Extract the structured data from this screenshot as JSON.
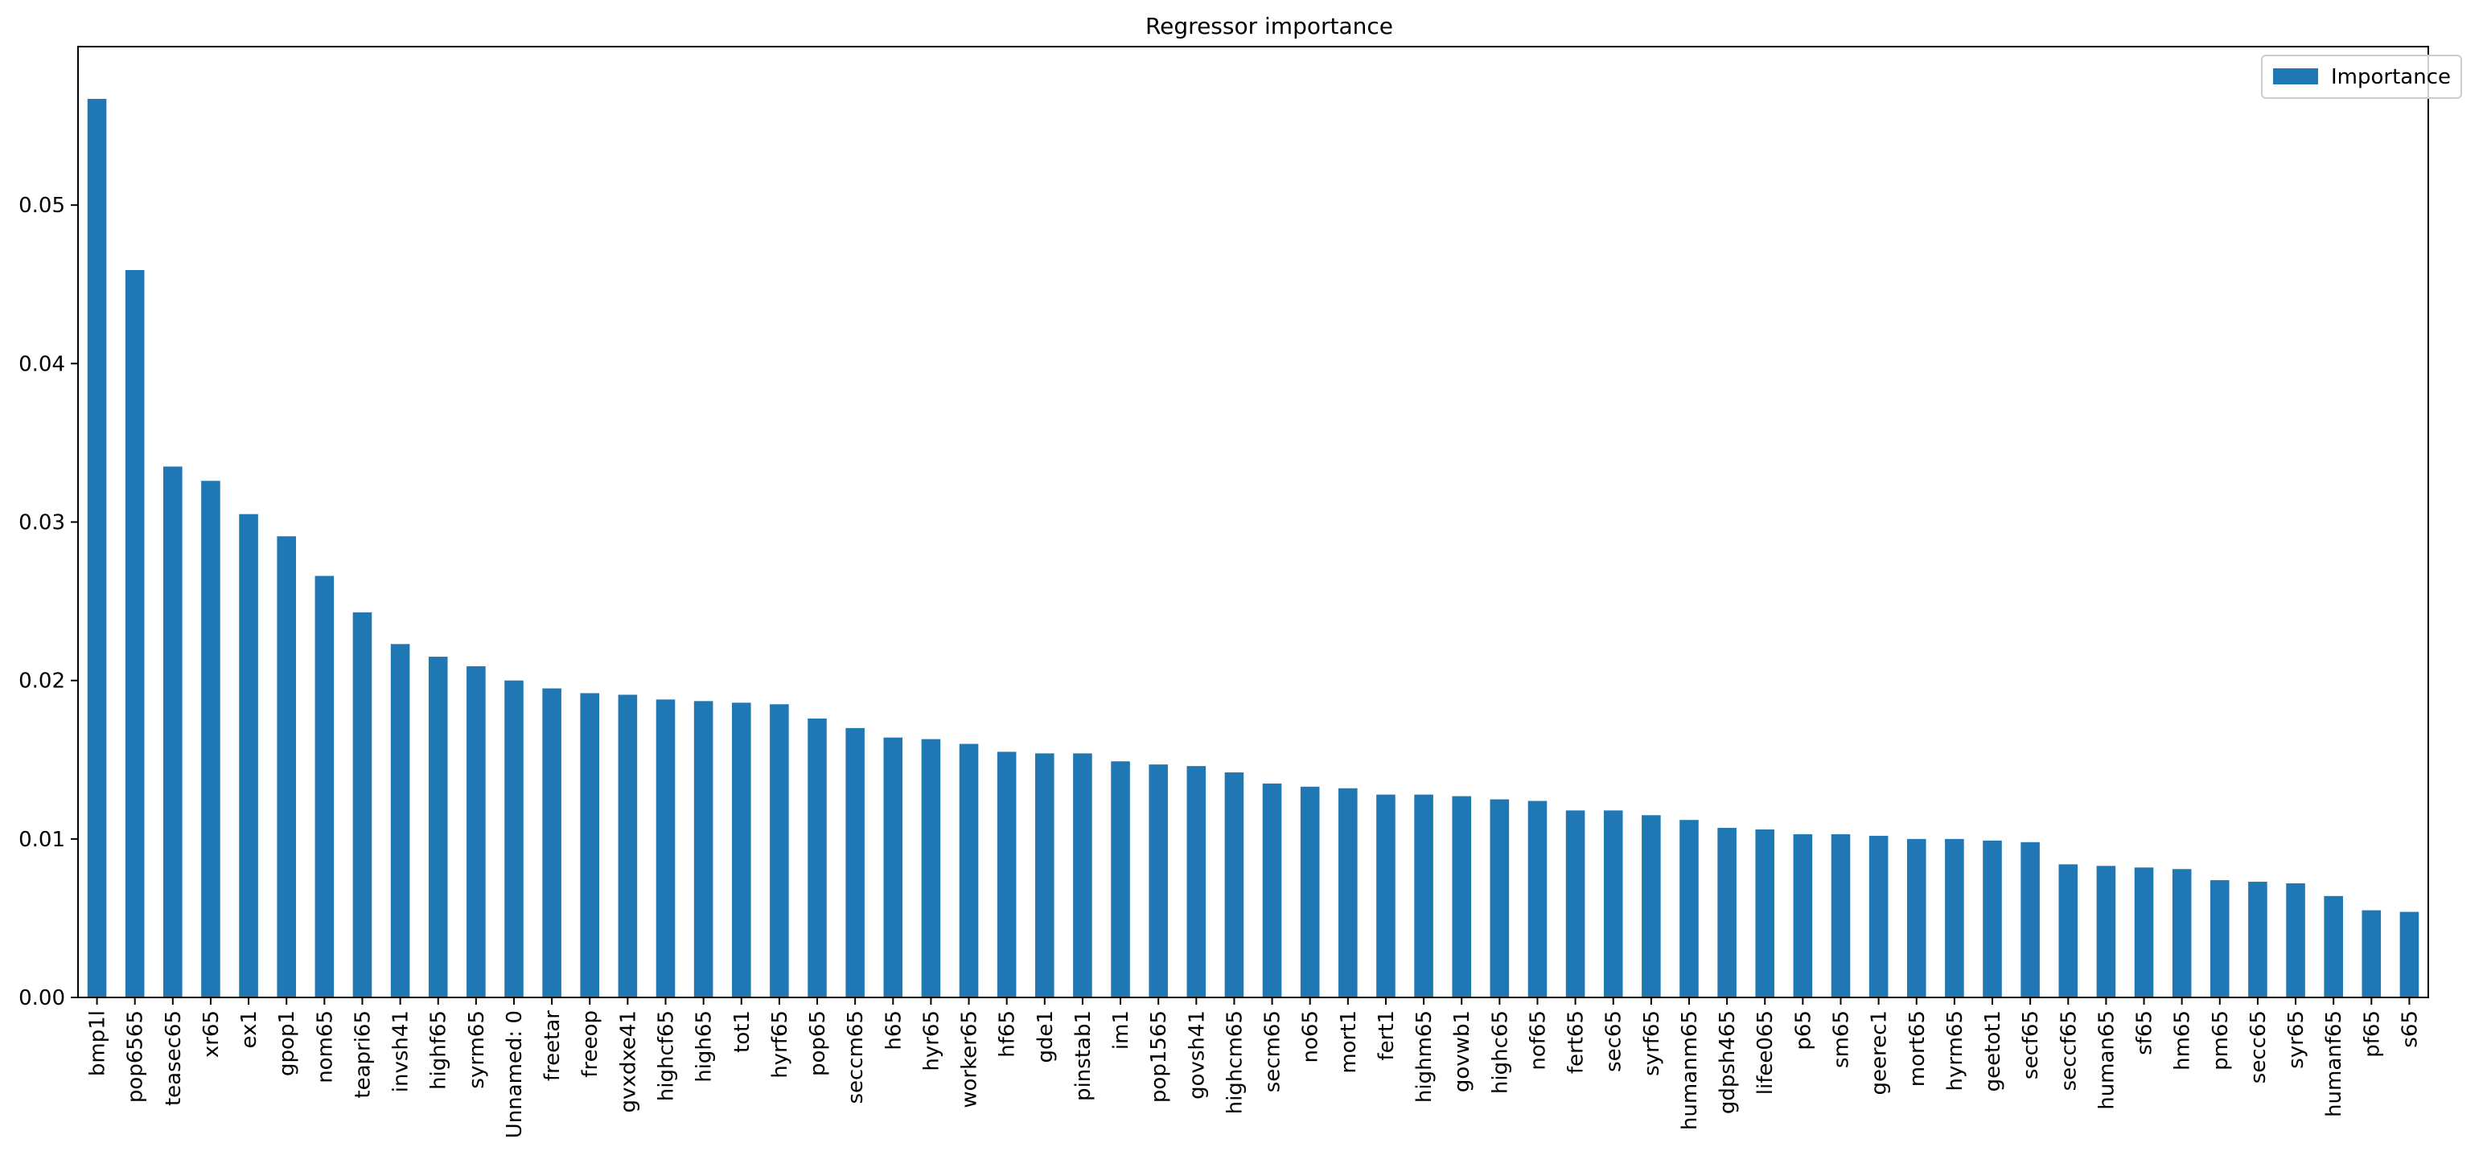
{
  "chart_data": {
    "type": "bar",
    "title": "Regressor importance",
    "xlabel": "",
    "ylabel": "",
    "ylim": [
      0,
      0.06
    ],
    "yticks": [
      0.0,
      0.01,
      0.02,
      0.03,
      0.04,
      0.05
    ],
    "ytick_labels": [
      "0.00",
      "0.01",
      "0.02",
      "0.03",
      "0.04",
      "0.05"
    ],
    "grid": false,
    "legend_position": "top-right",
    "colors": {
      "bar": "#1f77b4"
    },
    "categories": [
      "bmp1l",
      "pop6565",
      "teasec65",
      "xr65",
      "ex1",
      "gpop1",
      "nom65",
      "teapri65",
      "invsh41",
      "highf65",
      "syrm65",
      "Unnamed: 0",
      "freetar",
      "freeop",
      "gvxdxe41",
      "highcf65",
      "high65",
      "tot1",
      "hyrf65",
      "pop65",
      "seccm65",
      "h65",
      "hyr65",
      "worker65",
      "hf65",
      "gde1",
      "pinstab1",
      "im1",
      "pop1565",
      "govsh41",
      "highcm65",
      "secm65",
      "no65",
      "mort1",
      "fert1",
      "highm65",
      "govwb1",
      "highc65",
      "nof65",
      "fert65",
      "sec65",
      "syrf65",
      "humanm65",
      "gdpsh465",
      "lifee065",
      "p65",
      "sm65",
      "geerec1",
      "mort65",
      "hyrm65",
      "geetot1",
      "secf65",
      "seccf65",
      "human65",
      "sf65",
      "hm65",
      "pm65",
      "secc65",
      "syr65",
      "humanf65",
      "pf65",
      "s65"
    ],
    "series": [
      {
        "name": "Importance",
        "values": [
          0.0567,
          0.0459,
          0.0335,
          0.0326,
          0.0305,
          0.0291,
          0.0266,
          0.0243,
          0.0223,
          0.0215,
          0.0209,
          0.02,
          0.0195,
          0.0192,
          0.0191,
          0.0188,
          0.0187,
          0.0186,
          0.0185,
          0.0176,
          0.017,
          0.0164,
          0.0163,
          0.016,
          0.0155,
          0.0154,
          0.0154,
          0.0149,
          0.0147,
          0.0146,
          0.0142,
          0.0135,
          0.0133,
          0.0132,
          0.0128,
          0.0128,
          0.0127,
          0.0125,
          0.0124,
          0.0118,
          0.0118,
          0.0115,
          0.0112,
          0.0107,
          0.0106,
          0.0103,
          0.0103,
          0.0102,
          0.01,
          0.01,
          0.0099,
          0.0098,
          0.0084,
          0.0083,
          0.0082,
          0.0081,
          0.0074,
          0.0073,
          0.0072,
          0.0064,
          0.0055,
          0.0054
        ]
      }
    ]
  }
}
